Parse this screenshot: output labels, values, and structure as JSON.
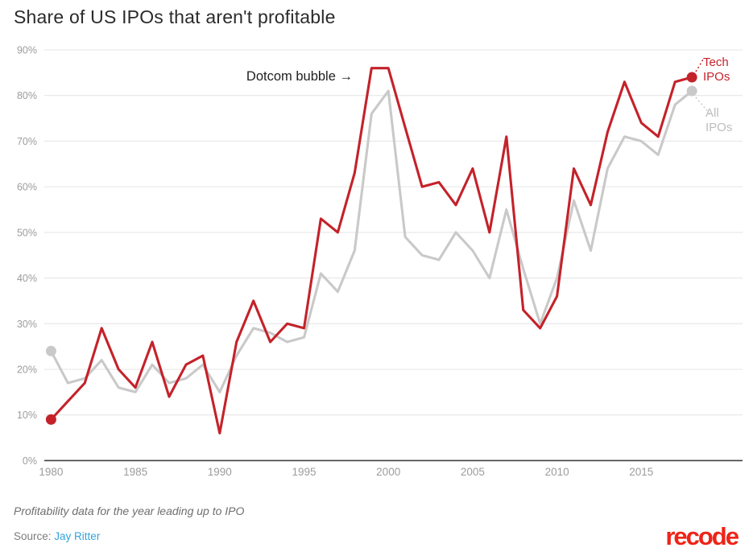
{
  "title": "Share of US IPOs that aren't profitable",
  "annotation": "Dotcom bubble →",
  "legend": {
    "tech": [
      "Tech",
      "IPOs"
    ],
    "all": [
      "All",
      "IPOs"
    ]
  },
  "footnote": "Profitability data for the year leading up to IPO",
  "source_label": "Source:",
  "source_link": "Jay Ritter",
  "logo_text": "recode",
  "colors": {
    "tech_line": "#c4222a",
    "all_line": "#c9c9c9",
    "grid": "#e4e4e4",
    "axis_baseline": "#404040",
    "tick_text": "#9c9c9c",
    "link_blue": "#35a3da",
    "logo_red": "#ee2419"
  },
  "chart_data": {
    "type": "line",
    "title": "Share of US IPOs that aren't profitable",
    "x": [
      1980,
      1981,
      1982,
      1983,
      1984,
      1985,
      1986,
      1987,
      1988,
      1989,
      1990,
      1991,
      1992,
      1993,
      1994,
      1995,
      1996,
      1997,
      1998,
      1999,
      2000,
      2001,
      2002,
      2003,
      2004,
      2005,
      2006,
      2007,
      2008,
      2009,
      2010,
      2011,
      2012,
      2013,
      2014,
      2015,
      2016,
      2017,
      2018
    ],
    "series": [
      {
        "name": "Tech IPOs",
        "color": "#c4222a",
        "values": [
          9,
          13,
          17,
          29,
          20,
          16,
          26,
          14,
          21,
          23,
          6,
          26,
          35,
          26,
          30,
          29,
          53,
          50,
          63,
          86,
          86,
          73,
          60,
          61,
          56,
          64,
          50,
          71,
          33,
          29,
          36,
          64,
          56,
          72,
          83,
          74,
          71,
          83,
          84
        ]
      },
      {
        "name": "All IPOs",
        "color": "#c9c9c9",
        "values": [
          24,
          17,
          18,
          22,
          16,
          15,
          21,
          17,
          18,
          21,
          15,
          23,
          29,
          28,
          26,
          27,
          41,
          37,
          46,
          76,
          81,
          49,
          45,
          44,
          50,
          46,
          40,
          55,
          42,
          30,
          40,
          57,
          46,
          64,
          71,
          70,
          67,
          78,
          81
        ]
      }
    ],
    "ylim": [
      0,
      90
    ],
    "ytick_step": 10,
    "ytick_format": "percent",
    "xticks": [
      1980,
      1985,
      1990,
      1995,
      2000,
      2005,
      2010,
      2015
    ],
    "grid": true,
    "legend_position": "right-end",
    "annotations": [
      "Dotcom bubble →"
    ],
    "xlabel": "",
    "ylabel": ""
  }
}
